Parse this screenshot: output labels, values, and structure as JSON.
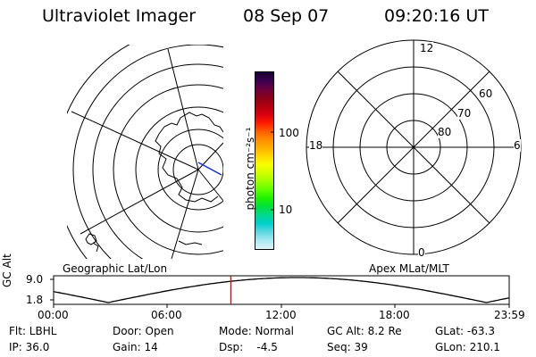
{
  "header": {
    "instrument": "Ultraviolet Imager",
    "date": "08 Sep 07",
    "time": "09:20:16 UT"
  },
  "geo_panel": {
    "label": "Geographic Lat/Lon"
  },
  "mag_panel": {
    "label": "Apex MLat/MLT",
    "mlt_labels": [
      "12",
      "18",
      "6",
      "0"
    ],
    "mlat_labels": [
      "60",
      "70",
      "80"
    ]
  },
  "colorbar": {
    "unit_label": "photon cm⁻²s⁻¹",
    "tick_labels": [
      "100",
      "10"
    ],
    "colors": [
      "#1a0030",
      "#3a0050",
      "#6a0040",
      "#8a0018",
      "#b00010",
      "#d80010",
      "#ff1a00",
      "#ff5a00",
      "#ff8c00",
      "#ffb000",
      "#ffd800",
      "#f8ff00",
      "#d0ff00",
      "#9cff00",
      "#5cff00",
      "#1cf000",
      "#00e040",
      "#00d890",
      "#00d0d0",
      "#60d8e0",
      "#a8e8f0",
      "#e0f4f8"
    ]
  },
  "altitude_plot": {
    "y_label": "GC Alt",
    "y_ticks": [
      "9.0",
      "1.8"
    ],
    "x_ticks": [
      "00:00",
      "06:00",
      "12:00",
      "18:00",
      "23:59"
    ],
    "current_time_fraction": 0.389
  },
  "info": {
    "filter": "Flt: LBHL",
    "ip": "IP: 36.0",
    "door": "Door: Open",
    "gain": "Gain: 14",
    "mode": "Mode: Normal",
    "dsp": "Dsp:    -4.5",
    "gc_alt": "GC Alt: 8.2 Re",
    "seq": "Seq: 39",
    "glat": "GLat: -63.3",
    "glon": "GLon: 210.1"
  }
}
